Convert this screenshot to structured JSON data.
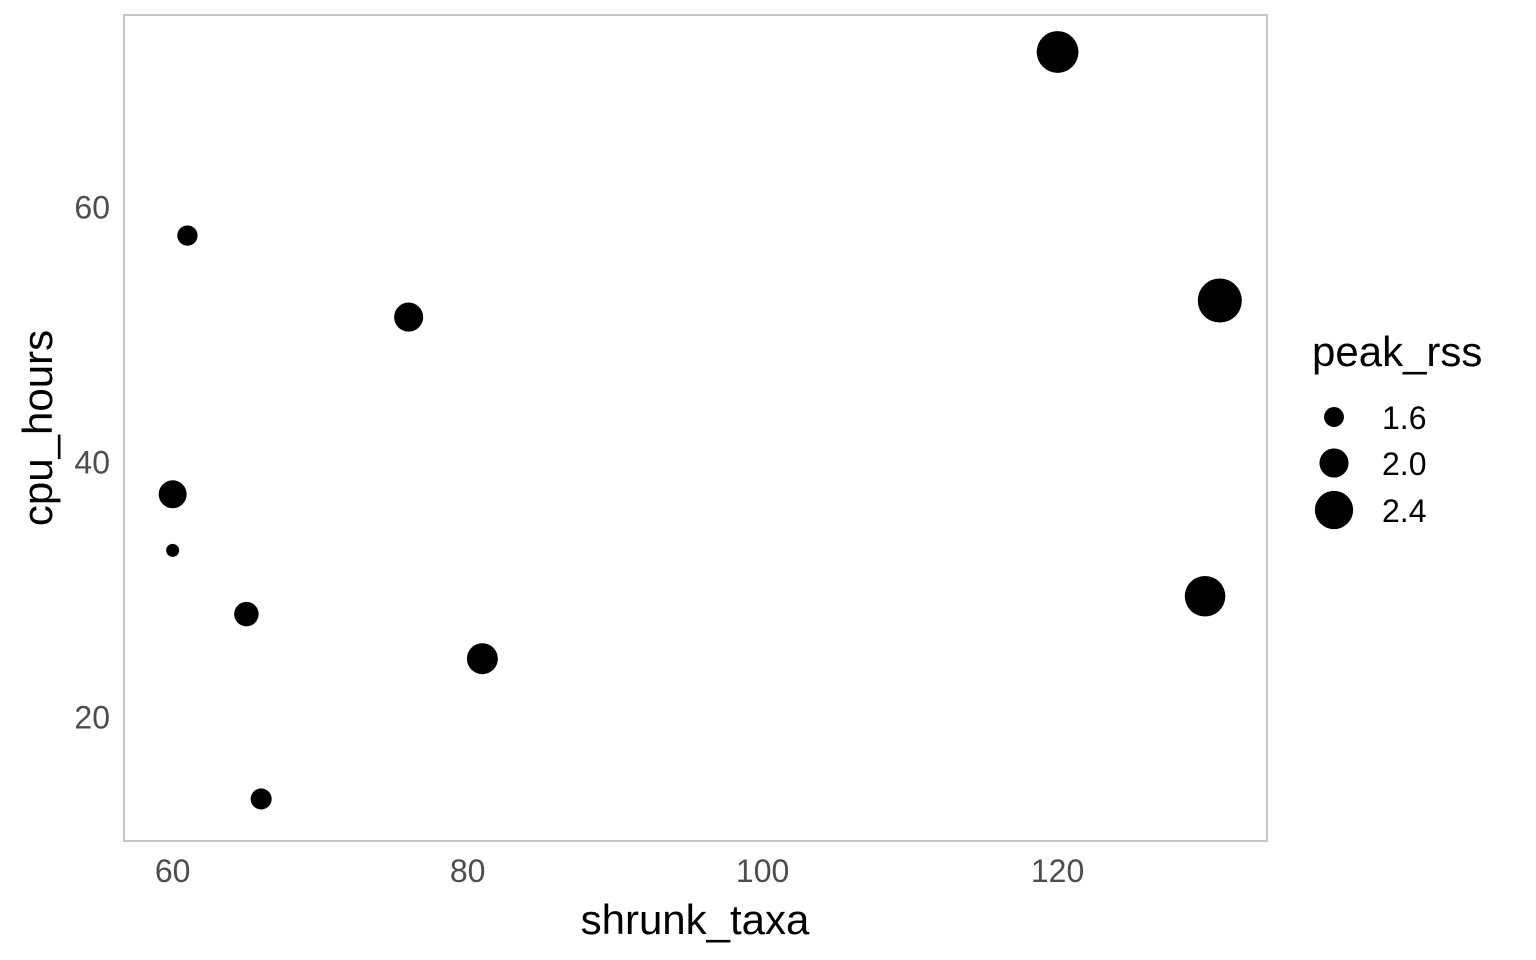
{
  "chart_data": {
    "type": "scatter",
    "title": "",
    "xlabel": "shrunk_taxa",
    "ylabel": "cpu_hours",
    "size_label": "peak_rss",
    "xlim": [
      56.7,
      134.2
    ],
    "ylim": [
      10.3,
      75.1
    ],
    "x_ticks": [
      60,
      80,
      100,
      120
    ],
    "y_ticks": [
      20,
      40,
      60
    ],
    "grid": false,
    "legend_position": "right",
    "size_legend": [
      {
        "label": "1.6",
        "value": 1.6
      },
      {
        "label": "2.0",
        "value": 2.0
      },
      {
        "label": "2.4",
        "value": 2.4
      }
    ],
    "points": [
      {
        "x": 61,
        "y": 57.8,
        "size": 1.62
      },
      {
        "x": 76,
        "y": 51.4,
        "size": 2.0
      },
      {
        "x": 60,
        "y": 37.5,
        "size": 1.95
      },
      {
        "x": 60,
        "y": 33.1,
        "size": 1.3
      },
      {
        "x": 65,
        "y": 28.1,
        "size": 1.8
      },
      {
        "x": 81,
        "y": 24.6,
        "size": 2.08
      },
      {
        "x": 66,
        "y": 13.6,
        "size": 1.65
      },
      {
        "x": 120,
        "y": 72.2,
        "size": 2.55
      },
      {
        "x": 131,
        "y": 52.7,
        "size": 2.65
      },
      {
        "x": 130,
        "y": 29.5,
        "size": 2.5
      }
    ],
    "colors": {
      "point": "#000000",
      "panel_border": "#b3b3b3",
      "tick_label": "#4d4d4d"
    }
  }
}
